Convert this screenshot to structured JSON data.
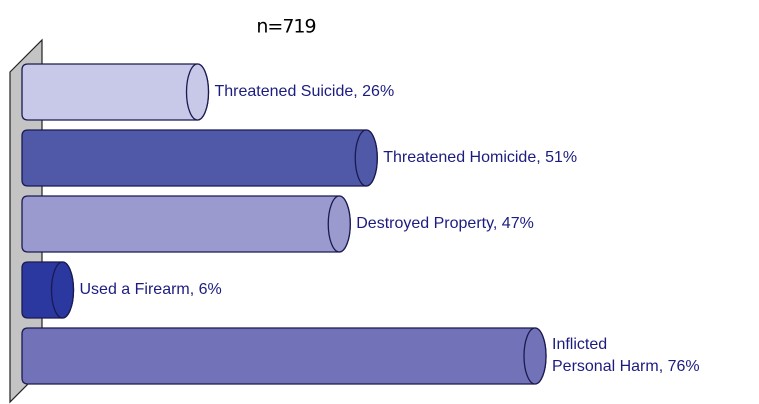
{
  "chart_data": {
    "type": "cylinder-bar",
    "title": "n=719",
    "values": [
      26,
      51,
      47,
      6,
      76
    ],
    "value_labels": [
      "Threatened Suicide, 26%",
      "Threatened Homicide, 51%",
      "Destroyed Property, 47%",
      "Used a Firearm, 6%",
      "Inflicted\nPersonal Harm, 76%"
    ],
    "colors": [
      "#c8c8e8",
      "#5058a8",
      "#9a9acf",
      "#2a38a0",
      "#7272b8"
    ]
  }
}
